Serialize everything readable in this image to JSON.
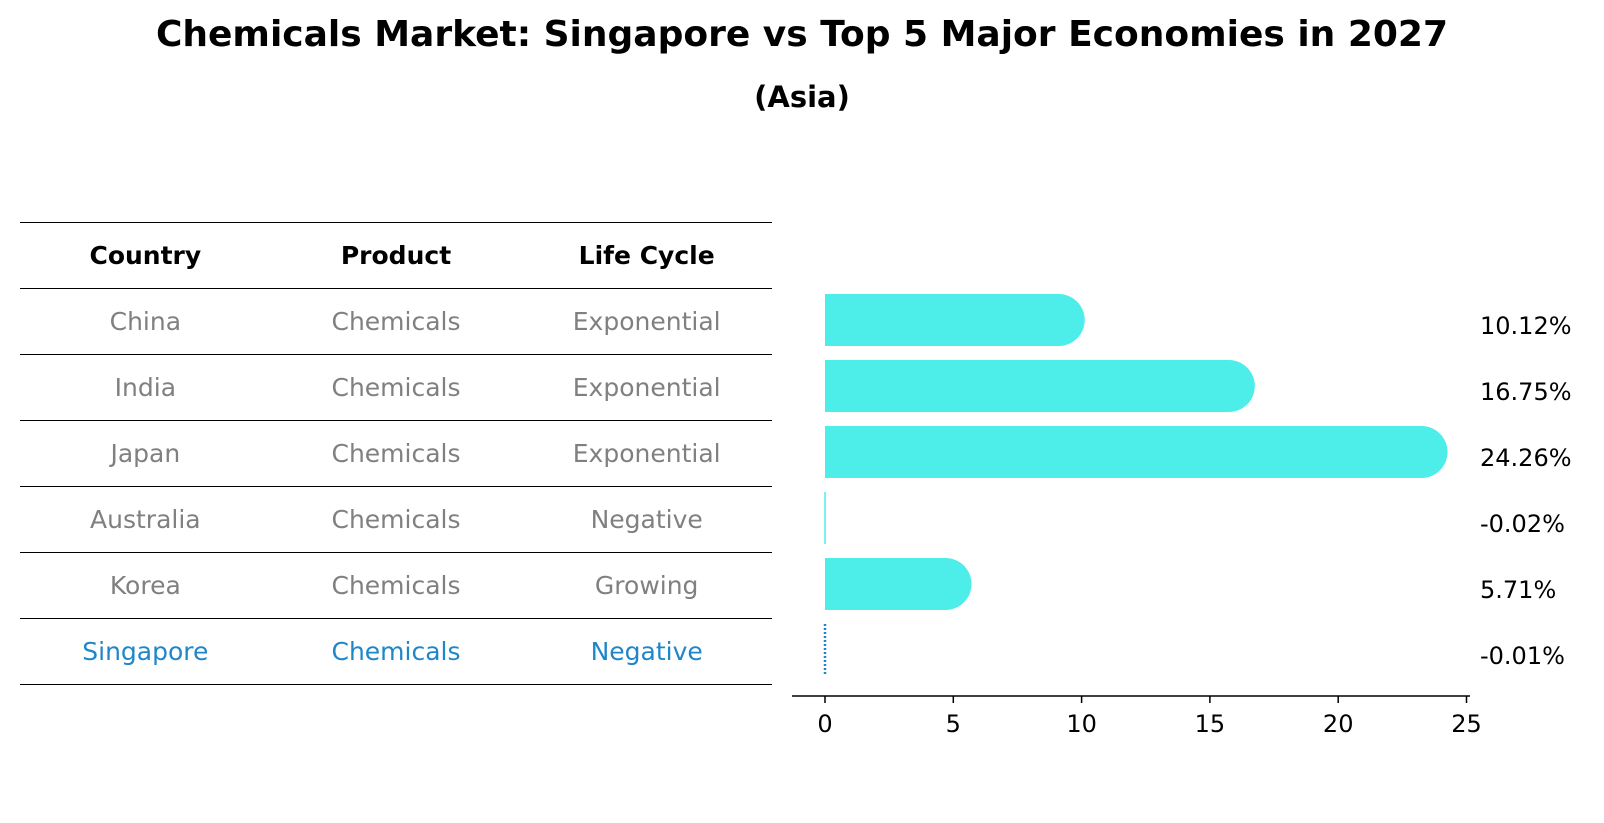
{
  "title": "Chemicals Market: Singapore vs Top 5 Major Economies in 2027",
  "subtitle": "(Asia)",
  "table": {
    "headers": [
      "Country",
      "Product",
      "Life Cycle"
    ],
    "rows": [
      [
        "China",
        "Chemicals",
        "Exponential"
      ],
      [
        "India",
        "Chemicals",
        "Exponential"
      ],
      [
        "Japan",
        "Chemicals",
        "Exponential"
      ],
      [
        "Australia",
        "Chemicals",
        "Negative"
      ],
      [
        "Korea",
        "Chemicals",
        "Growing"
      ],
      [
        "Singapore",
        "Chemicals",
        "Negative"
      ]
    ],
    "highlight_row": "Singapore"
  },
  "colors": {
    "bar": "#4dede9",
    "highlight": "#1f86c8",
    "dim_text": "#808080"
  },
  "chart_data": {
    "type": "bar",
    "orientation": "horizontal",
    "categories": [
      "China",
      "India",
      "Japan",
      "Australia",
      "Korea",
      "Singapore"
    ],
    "values": [
      10.12,
      16.75,
      24.26,
      -0.02,
      5.71,
      -0.01
    ],
    "value_labels": [
      "10.12%",
      "16.75%",
      "24.26%",
      "-0.02%",
      "5.71%",
      "-0.01%"
    ],
    "x_ticks": [
      0,
      5,
      10,
      15,
      20,
      25
    ],
    "xlim": [
      -1.3,
      25.9
    ],
    "xlabel": "",
    "ylabel": "",
    "grid": false
  }
}
